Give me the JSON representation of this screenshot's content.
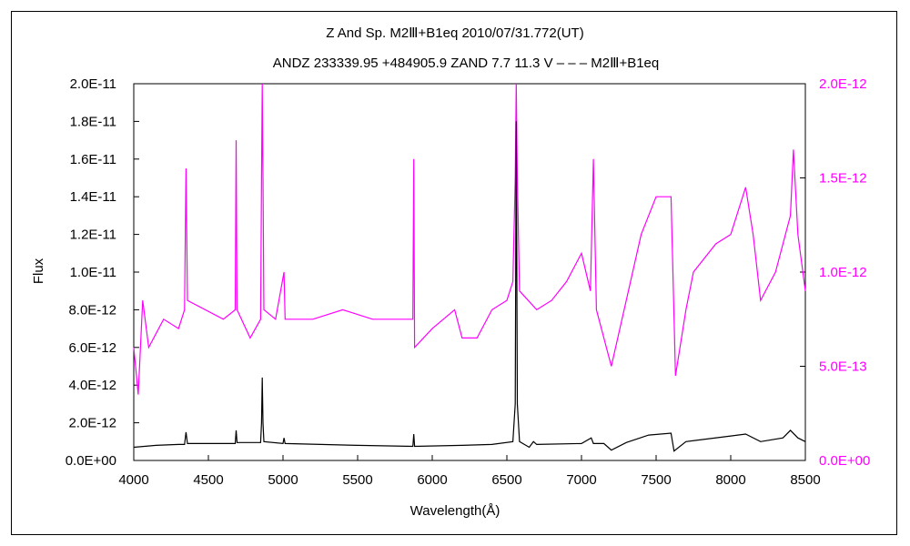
{
  "chart_data": {
    "type": "line",
    "title": "Z And    Sp. M2Ⅲ+B1eq    2010/07/31.772(UT)",
    "subtitle": "ANDZ 233339.95 +484905.9 ZAND 7.7 11.3 V – – – M2Ⅲ+B1eq",
    "xlabel": "Wavelength(Å)",
    "ylabel": "Flux",
    "xlim": [
      4000,
      8500
    ],
    "ylim_left": [
      0,
      2e-11
    ],
    "ylim_right": [
      0,
      2e-12
    ],
    "x_ticks": [
      "4000",
      "4500",
      "5000",
      "5500",
      "6000",
      "6500",
      "7000",
      "7500",
      "8000",
      "8500"
    ],
    "y_ticks_left": [
      "0.0E+00",
      "2.0E-12",
      "4.0E-12",
      "6.0E-12",
      "8.0E-12",
      "1.0E-11",
      "1.2E-11",
      "1.4E-11",
      "1.6E-11",
      "1.8E-11",
      "2.0E-11"
    ],
    "y_ticks_right": [
      "0.0E+00",
      "5.0E-13",
      "1.0E-12",
      "1.5E-12",
      "2.0E-12"
    ],
    "grid": false,
    "series": [
      {
        "axis": "left",
        "color": "#000000",
        "points": [
          [
            4000,
            7e-13
          ],
          [
            4150,
            8e-13
          ],
          [
            4300,
            8.5e-13
          ],
          [
            4340,
            8.5e-13
          ],
          [
            4350,
            1.5e-12
          ],
          [
            4360,
            9e-13
          ],
          [
            4600,
            9e-13
          ],
          [
            4680,
            9e-13
          ],
          [
            4686,
            1.6e-12
          ],
          [
            4692,
            9.5e-13
          ],
          [
            4850,
            9.5e-13
          ],
          [
            4856,
            2e-12
          ],
          [
            4861,
            4.4e-12
          ],
          [
            4866,
            2e-12
          ],
          [
            4872,
            1e-12
          ],
          [
            5000,
            9e-13
          ],
          [
            5007,
            1.2e-12
          ],
          [
            5014,
            9e-13
          ],
          [
            5500,
            8e-13
          ],
          [
            5870,
            7.5e-13
          ],
          [
            5876,
            1.4e-12
          ],
          [
            5882,
            7.5e-13
          ],
          [
            6200,
            8e-13
          ],
          [
            6400,
            8.5e-13
          ],
          [
            6540,
            1e-12
          ],
          [
            6556,
            3e-12
          ],
          [
            6563,
            1.8e-11
          ],
          [
            6570,
            3e-12
          ],
          [
            6585,
            1e-12
          ],
          [
            6650,
            7e-13
          ],
          [
            6678,
            1e-12
          ],
          [
            6700,
            8.5e-13
          ],
          [
            7000,
            9e-13
          ],
          [
            7065,
            1.2e-12
          ],
          [
            7080,
            9e-13
          ],
          [
            7150,
            9e-13
          ],
          [
            7200,
            5.5e-13
          ],
          [
            7300,
            9.5e-13
          ],
          [
            7450,
            1.35e-12
          ],
          [
            7600,
            1.45e-12
          ],
          [
            7620,
            5e-13
          ],
          [
            7700,
            1e-12
          ],
          [
            8000,
            1.3e-12
          ],
          [
            8100,
            1.4e-12
          ],
          [
            8200,
            1e-12
          ],
          [
            8350,
            1.2e-12
          ],
          [
            8400,
            1.6e-12
          ],
          [
            8450,
            1.2e-12
          ],
          [
            8500,
            1e-12
          ]
        ]
      },
      {
        "axis": "right",
        "color": "#ff00ff",
        "points": [
          [
            4000,
            6e-13
          ],
          [
            4030,
            3.5e-13
          ],
          [
            4060,
            8.5e-13
          ],
          [
            4100,
            6e-13
          ],
          [
            4200,
            7.5e-13
          ],
          [
            4300,
            7e-13
          ],
          [
            4340,
            8e-13
          ],
          [
            4350,
            1.55e-12
          ],
          [
            4360,
            8.5e-13
          ],
          [
            4600,
            7.5e-13
          ],
          [
            4680,
            8e-13
          ],
          [
            4686,
            1.7e-12
          ],
          [
            4692,
            8e-13
          ],
          [
            4780,
            6.5e-13
          ],
          [
            4850,
            7.5e-13
          ],
          [
            4856,
            1.5e-12
          ],
          [
            4861,
            2e-12
          ],
          [
            4866,
            1.5e-12
          ],
          [
            4872,
            8e-13
          ],
          [
            4950,
            7.5e-13
          ],
          [
            5007,
            1e-12
          ],
          [
            5014,
            7.5e-13
          ],
          [
            5200,
            7.5e-13
          ],
          [
            5400,
            8e-13
          ],
          [
            5600,
            7.5e-13
          ],
          [
            5800,
            7.5e-13
          ],
          [
            5870,
            7.5e-13
          ],
          [
            5876,
            1.6e-12
          ],
          [
            5882,
            6e-13
          ],
          [
            6000,
            7e-13
          ],
          [
            6150,
            8e-13
          ],
          [
            6200,
            6.5e-13
          ],
          [
            6300,
            6.5e-13
          ],
          [
            6400,
            8e-13
          ],
          [
            6500,
            8.5e-13
          ],
          [
            6540,
            9.5e-13
          ],
          [
            6556,
            1.5e-12
          ],
          [
            6563,
            2e-12
          ],
          [
            6570,
            1.5e-12
          ],
          [
            6585,
            9e-13
          ],
          [
            6700,
            8e-13
          ],
          [
            6800,
            8.5e-13
          ],
          [
            6900,
            9.5e-13
          ],
          [
            7000,
            1.1e-12
          ],
          [
            7060,
            9e-13
          ],
          [
            7080,
            1.6e-12
          ],
          [
            7100,
            8e-13
          ],
          [
            7200,
            5e-13
          ],
          [
            7300,
            8.5e-13
          ],
          [
            7400,
            1.2e-12
          ],
          [
            7500,
            1.4e-12
          ],
          [
            7600,
            1.4e-12
          ],
          [
            7630,
            4.5e-13
          ],
          [
            7700,
            8e-13
          ],
          [
            7750,
            1e-12
          ],
          [
            7900,
            1.15e-12
          ],
          [
            8000,
            1.2e-12
          ],
          [
            8100,
            1.45e-12
          ],
          [
            8150,
            1.2e-12
          ],
          [
            8200,
            8.5e-13
          ],
          [
            8300,
            1e-12
          ],
          [
            8400,
            1.3e-12
          ],
          [
            8420,
            1.65e-12
          ],
          [
            8450,
            1.2e-12
          ],
          [
            8500,
            9e-13
          ]
        ]
      }
    ]
  }
}
